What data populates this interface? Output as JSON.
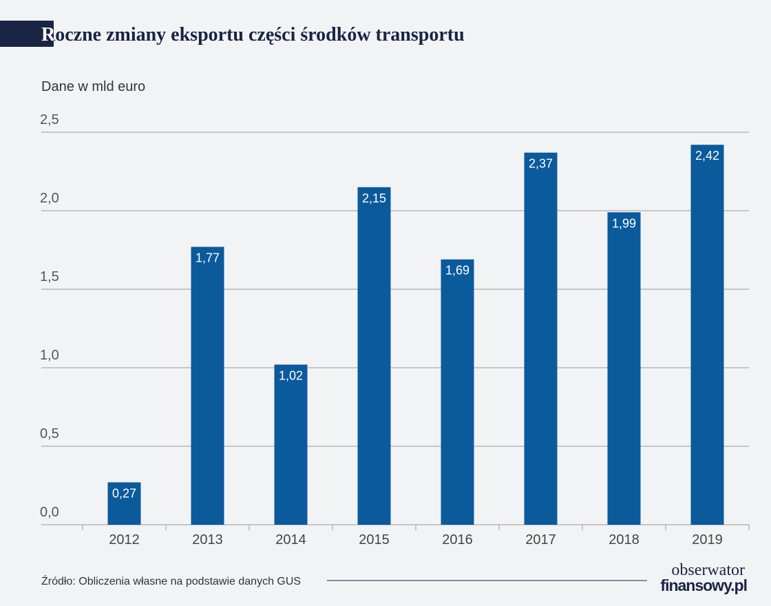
{
  "chart_data": {
    "type": "bar",
    "title": "Roczne zmiany eksportu części środków transportu",
    "subtitle": "Dane w mld euro",
    "categories": [
      "2012",
      "2013",
      "2014",
      "2015",
      "2016",
      "2017",
      "2018",
      "2019"
    ],
    "values": [
      0.27,
      1.77,
      1.02,
      2.15,
      1.69,
      2.37,
      1.99,
      2.42
    ],
    "value_labels": [
      "0,27",
      "1,77",
      "1,02",
      "2,15",
      "1,69",
      "2,37",
      "1,99",
      "2,42"
    ],
    "color": "#0b5a9c",
    "ylim": [
      0,
      2.5
    ],
    "yticks": [
      {
        "value": 0,
        "label": "0,0"
      },
      {
        "value": 0.5,
        "label": "0,5"
      },
      {
        "value": 1,
        "label": "1,0"
      },
      {
        "value": 1.5,
        "label": "1,5"
      },
      {
        "value": 2,
        "label": "2,0"
      },
      {
        "value": 2.5,
        "label": "2,5"
      }
    ],
    "grid": true,
    "source": "Źródło: Obliczenia własne na podstawie danych GUS"
  },
  "logo": {
    "line1": "obserwator",
    "line2": "finansowy.pl"
  }
}
